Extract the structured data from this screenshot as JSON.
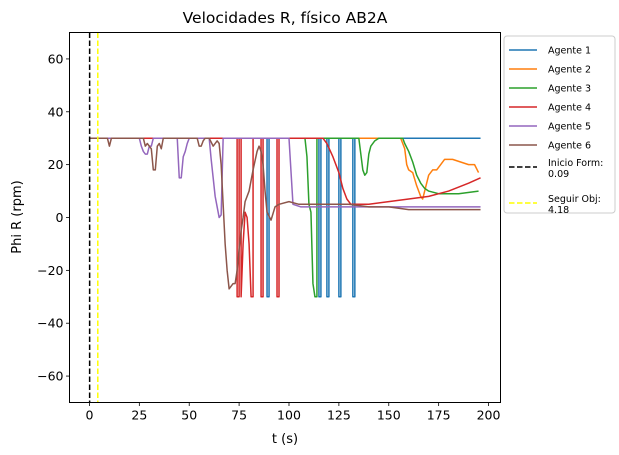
{
  "chart_data": {
    "type": "line",
    "title": "Velocidades R, físico AB2A",
    "xlabel": "t (s)",
    "ylabel": "Phi R (rpm)",
    "xlim": [
      -10,
      206
    ],
    "ylim": [
      -70,
      70
    ],
    "xticks": [
      0,
      25,
      50,
      75,
      100,
      125,
      150,
      175,
      200
    ],
    "yticks": [
      -60,
      -40,
      -20,
      0,
      20,
      40,
      60
    ],
    "grid": false,
    "legend_position": "outside-right",
    "series": [
      {
        "name": "Agente 1",
        "color": "#1f77b4",
        "points": [
          [
            0,
            30
          ],
          [
            89,
            30
          ],
          [
            89,
            -30
          ],
          [
            90,
            -30
          ],
          [
            90,
            30
          ],
          [
            115,
            30
          ],
          [
            115,
            -30
          ],
          [
            116,
            -30
          ],
          [
            116,
            30
          ],
          [
            119,
            30
          ],
          [
            119,
            -30
          ],
          [
            120,
            -30
          ],
          [
            120,
            30
          ],
          [
            125,
            30
          ],
          [
            125,
            -30
          ],
          [
            126,
            -30
          ],
          [
            126,
            30
          ],
          [
            132,
            30
          ],
          [
            132,
            -30
          ],
          [
            133,
            -30
          ],
          [
            133,
            30
          ],
          [
            196,
            30
          ]
        ]
      },
      {
        "name": "Agente 2",
        "color": "#ff7f0e",
        "points": [
          [
            0,
            30
          ],
          [
            156,
            30
          ],
          [
            157,
            28
          ],
          [
            158,
            26
          ],
          [
            159,
            20
          ],
          [
            160,
            18
          ],
          [
            162,
            17
          ],
          [
            164,
            12
          ],
          [
            166,
            8
          ],
          [
            167,
            7
          ],
          [
            168,
            10
          ],
          [
            170,
            16
          ],
          [
            172,
            18
          ],
          [
            174,
            18
          ],
          [
            176,
            20
          ],
          [
            178,
            22
          ],
          [
            182,
            22
          ],
          [
            186,
            21
          ],
          [
            190,
            20
          ],
          [
            193,
            20
          ],
          [
            195,
            17
          ]
        ]
      },
      {
        "name": "Agente 3",
        "color": "#2ca02c",
        "points": [
          [
            0,
            30
          ],
          [
            108,
            30
          ],
          [
            109,
            23
          ],
          [
            110,
            5
          ],
          [
            111,
            2
          ],
          [
            112,
            -25
          ],
          [
            113,
            -30
          ],
          [
            114,
            -30
          ],
          [
            114,
            30
          ],
          [
            135,
            30
          ],
          [
            136,
            24
          ],
          [
            137,
            18
          ],
          [
            138,
            16
          ],
          [
            139,
            17
          ],
          [
            140,
            24
          ],
          [
            141,
            27
          ],
          [
            143,
            29
          ],
          [
            145,
            30
          ],
          [
            157,
            30
          ],
          [
            158,
            28
          ],
          [
            160,
            25
          ],
          [
            162,
            21
          ],
          [
            164,
            16
          ],
          [
            166,
            13
          ],
          [
            168,
            11
          ],
          [
            170,
            10
          ],
          [
            175,
            9
          ],
          [
            185,
            9
          ],
          [
            195,
            10
          ]
        ]
      },
      {
        "name": "Agente 4",
        "color": "#d62728",
        "points": [
          [
            0,
            30
          ],
          [
            74,
            30
          ],
          [
            74,
            -30
          ],
          [
            75,
            -30
          ],
          [
            75,
            30
          ],
          [
            76,
            30
          ],
          [
            76,
            -30
          ],
          [
            77,
            -10
          ],
          [
            78,
            2
          ],
          [
            79,
            0
          ],
          [
            80,
            -10
          ],
          [
            81,
            -30
          ],
          [
            82,
            -30
          ],
          [
            82,
            30
          ],
          [
            86,
            30
          ],
          [
            86,
            -30
          ],
          [
            87,
            -30
          ],
          [
            87,
            30
          ],
          [
            94,
            30
          ],
          [
            94,
            -30
          ],
          [
            95,
            -30
          ],
          [
            95,
            30
          ],
          [
            117,
            30
          ],
          [
            119,
            28
          ],
          [
            122,
            23
          ],
          [
            125,
            17
          ],
          [
            127,
            11
          ],
          [
            129,
            7
          ],
          [
            131,
            5
          ],
          [
            140,
            5
          ],
          [
            150,
            6
          ],
          [
            160,
            7
          ],
          [
            170,
            8
          ],
          [
            180,
            10
          ],
          [
            190,
            13
          ],
          [
            196,
            15
          ]
        ]
      },
      {
        "name": "Agente 5",
        "color": "#9467bd",
        "points": [
          [
            0,
            30
          ],
          [
            25,
            30
          ],
          [
            26,
            27
          ],
          [
            27,
            25
          ],
          [
            28,
            24
          ],
          [
            29,
            24
          ],
          [
            30,
            27
          ],
          [
            31,
            27
          ],
          [
            32,
            30
          ],
          [
            44,
            30
          ],
          [
            45,
            15
          ],
          [
            46,
            15
          ],
          [
            47,
            23
          ],
          [
            48,
            25
          ],
          [
            49,
            28
          ],
          [
            50,
            30
          ],
          [
            60,
            30
          ],
          [
            61,
            22
          ],
          [
            62,
            15
          ],
          [
            63,
            8
          ],
          [
            64,
            4
          ],
          [
            65,
            0
          ],
          [
            66,
            1
          ],
          [
            67,
            30
          ],
          [
            100,
            30
          ],
          [
            102,
            5
          ],
          [
            106,
            4
          ],
          [
            115,
            4
          ],
          [
            130,
            4
          ],
          [
            150,
            4
          ],
          [
            170,
            4
          ],
          [
            196,
            4
          ]
        ]
      },
      {
        "name": "Agente 6",
        "color": "#8c564b",
        "points": [
          [
            0,
            30
          ],
          [
            9,
            30
          ],
          [
            10,
            27
          ],
          [
            11,
            30
          ],
          [
            27,
            30
          ],
          [
            28,
            27
          ],
          [
            29,
            28
          ],
          [
            30,
            27
          ],
          [
            31,
            26
          ],
          [
            32,
            18
          ],
          [
            33,
            18
          ],
          [
            34,
            27
          ],
          [
            35,
            28
          ],
          [
            36,
            26
          ],
          [
            37,
            30
          ],
          [
            54,
            30
          ],
          [
            55,
            27
          ],
          [
            56,
            27
          ],
          [
            57,
            29
          ],
          [
            58,
            30
          ],
          [
            60,
            30
          ],
          [
            62,
            27
          ],
          [
            64,
            29
          ],
          [
            65,
            28
          ],
          [
            66,
            20
          ],
          [
            67,
            5
          ],
          [
            68,
            -10
          ],
          [
            69,
            -20
          ],
          [
            70,
            -27
          ],
          [
            71,
            -26
          ],
          [
            72,
            -25
          ],
          [
            73,
            -25
          ],
          [
            74,
            -20
          ],
          [
            75,
            -12
          ],
          [
            76,
            -5
          ],
          [
            77,
            0
          ],
          [
            78,
            6
          ],
          [
            80,
            10
          ],
          [
            82,
            18
          ],
          [
            84,
            25
          ],
          [
            85,
            27
          ],
          [
            86,
            25
          ],
          [
            87,
            20
          ],
          [
            88,
            10
          ],
          [
            89,
            2
          ],
          [
            91,
            -1
          ],
          [
            93,
            4
          ],
          [
            95,
            5
          ],
          [
            100,
            6
          ],
          [
            105,
            5
          ],
          [
            110,
            5
          ],
          [
            120,
            5
          ],
          [
            130,
            5
          ],
          [
            140,
            4
          ],
          [
            150,
            4
          ],
          [
            160,
            3
          ],
          [
            170,
            3
          ],
          [
            180,
            3
          ],
          [
            196,
            3
          ]
        ]
      }
    ],
    "vlines": [
      {
        "name": "Inicio Form:\n0.09",
        "label_lines": [
          "Inicio Form:",
          "0.09"
        ],
        "x": 0.09,
        "color": "#000000",
        "dash": "dashed"
      },
      {
        "name": "Seguir Obj:\n4.18",
        "label_lines": [
          "Seguir Obj:",
          "4.18"
        ],
        "x": 4.18,
        "color": "#ffff00",
        "dash": "dashed"
      }
    ]
  }
}
